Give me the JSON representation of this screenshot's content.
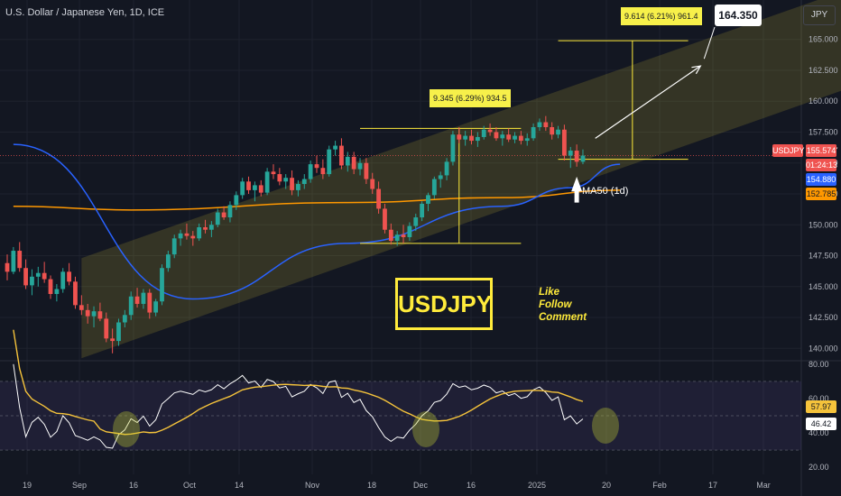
{
  "header": {
    "title": "U.S. Dollar / Japanese Yen, 1D, ICE"
  },
  "currency_button": "JPY",
  "price_tags": {
    "symbol": "USDJPY",
    "last": "155.574",
    "countdown": "01:24:13",
    "ma50": "154.880",
    "ma200": "152.785",
    "rsi": "46.42",
    "rsi_ma": "57.97"
  },
  "annotations": {
    "brand": "USDJPY",
    "cta": [
      "Like",
      "Follow",
      "Comment"
    ],
    "ma_label": "MA50 (1d)",
    "measure_1": "9.345 (6.29%) 934.5",
    "measure_2": "9.614 (6.21%) 961.4",
    "target": "164.350"
  },
  "colors": {
    "background": "#131722",
    "up": "#26a69a",
    "down": "#ef5350",
    "ma50": "#2962ff",
    "ma200": "#ff9800",
    "channel": "#ffeb3b",
    "rsi": "#ffffff",
    "rsi_ma": "#f5c33b"
  },
  "chart_data": [
    {
      "type": "candlestick",
      "title": "U.S. Dollar / Japanese Yen, 1D, ICE",
      "x_ticks": [
        "19",
        "Sep",
        "16",
        "Oct",
        "14",
        "Nov",
        "18",
        "Dec",
        "16",
        "2025",
        "20",
        "Feb",
        "17",
        "Mar"
      ],
      "y_ticks": [
        140.0,
        142.5,
        145.0,
        147.5,
        150.0,
        152.5,
        155.0,
        157.5,
        160.0,
        162.5,
        165.0
      ],
      "ylim": [
        139.0,
        166.0
      ],
      "ohlc": [
        [
          146.9,
          147.6,
          145.5,
          146.2
        ],
        [
          146.2,
          148.2,
          146.0,
          147.9
        ],
        [
          147.9,
          148.6,
          146.2,
          146.5
        ],
        [
          146.5,
          147.2,
          144.8,
          145.1
        ],
        [
          145.1,
          146.4,
          144.3,
          145.8
        ],
        [
          145.8,
          146.6,
          145.0,
          146.1
        ],
        [
          146.1,
          147.0,
          145.3,
          145.6
        ],
        [
          145.6,
          145.9,
          144.0,
          144.4
        ],
        [
          144.4,
          145.2,
          143.8,
          144.8
        ],
        [
          144.8,
          146.5,
          144.5,
          146.2
        ],
        [
          146.2,
          146.9,
          145.1,
          145.4
        ],
        [
          145.4,
          145.8,
          143.2,
          143.5
        ],
        [
          143.5,
          144.3,
          142.7,
          143.1
        ],
        [
          143.1,
          143.6,
          142.0,
          142.6
        ],
        [
          142.6,
          143.4,
          141.7,
          143.0
        ],
        [
          143.0,
          143.7,
          142.2,
          142.4
        ],
        [
          142.4,
          142.9,
          140.5,
          140.8
        ],
        [
          140.8,
          141.6,
          139.6,
          140.6
        ],
        [
          140.6,
          142.4,
          140.2,
          142.1
        ],
        [
          142.1,
          143.1,
          141.7,
          142.7
        ],
        [
          142.7,
          144.6,
          142.3,
          144.2
        ],
        [
          144.2,
          144.9,
          143.3,
          143.6
        ],
        [
          143.6,
          144.8,
          143.2,
          144.5
        ],
        [
          144.5,
          144.8,
          142.4,
          142.9
        ],
        [
          142.9,
          144.0,
          142.6,
          143.8
        ],
        [
          143.8,
          146.8,
          143.5,
          146.5
        ],
        [
          146.5,
          147.9,
          146.2,
          147.6
        ],
        [
          147.6,
          149.2,
          147.3,
          148.9
        ],
        [
          148.9,
          149.6,
          148.3,
          149.3
        ],
        [
          149.3,
          150.1,
          148.8,
          149.1
        ],
        [
          149.1,
          149.5,
          148.3,
          148.9
        ],
        [
          148.9,
          150.1,
          148.7,
          149.8
        ],
        [
          149.8,
          150.4,
          149.3,
          149.6
        ],
        [
          149.6,
          150.3,
          149.0,
          150.0
        ],
        [
          150.0,
          151.3,
          149.8,
          151.0
        ],
        [
          151.0,
          151.5,
          150.4,
          150.6
        ],
        [
          150.6,
          151.9,
          150.2,
          151.6
        ],
        [
          151.6,
          152.7,
          151.2,
          152.4
        ],
        [
          152.4,
          153.8,
          152.1,
          153.5
        ],
        [
          153.5,
          153.9,
          152.5,
          152.8
        ],
        [
          152.8,
          153.5,
          151.9,
          153.2
        ],
        [
          153.2,
          153.6,
          152.3,
          152.6
        ],
        [
          152.6,
          154.6,
          152.4,
          154.3
        ],
        [
          154.3,
          154.9,
          153.7,
          154.1
        ],
        [
          154.1,
          154.6,
          153.2,
          153.5
        ],
        [
          153.5,
          154.1,
          152.9,
          153.8
        ],
        [
          153.8,
          154.4,
          152.4,
          152.8
        ],
        [
          152.8,
          153.6,
          152.3,
          153.3
        ],
        [
          153.3,
          154.1,
          152.9,
          153.7
        ],
        [
          153.7,
          155.2,
          153.4,
          154.9
        ],
        [
          154.9,
          155.6,
          154.2,
          154.6
        ],
        [
          154.6,
          155.3,
          153.7,
          154.1
        ],
        [
          154.1,
          156.4,
          153.9,
          156.1
        ],
        [
          156.1,
          156.8,
          155.6,
          156.4
        ],
        [
          156.4,
          157.0,
          154.5,
          154.8
        ],
        [
          154.8,
          155.9,
          154.3,
          155.5
        ],
        [
          155.5,
          155.9,
          154.1,
          154.5
        ],
        [
          154.5,
          155.4,
          154.0,
          155.0
        ],
        [
          155.0,
          155.4,
          153.3,
          153.7
        ],
        [
          153.7,
          154.2,
          152.5,
          152.9
        ],
        [
          152.9,
          153.5,
          150.9,
          151.3
        ],
        [
          151.3,
          151.7,
          149.3,
          149.6
        ],
        [
          149.6,
          150.1,
          148.4,
          148.7
        ],
        [
          148.7,
          149.5,
          148.3,
          149.2
        ],
        [
          149.2,
          150.0,
          148.5,
          149.0
        ],
        [
          149.0,
          150.2,
          148.7,
          149.9
        ],
        [
          149.9,
          150.9,
          149.5,
          150.6
        ],
        [
          150.6,
          151.9,
          150.3,
          151.7
        ],
        [
          151.7,
          152.6,
          151.1,
          152.4
        ],
        [
          152.4,
          153.9,
          152.1,
          153.7
        ],
        [
          153.7,
          154.3,
          153.0,
          154.0
        ],
        [
          154.0,
          155.4,
          153.6,
          155.1
        ],
        [
          155.1,
          157.6,
          154.8,
          157.3
        ],
        [
          157.3,
          157.9,
          156.6,
          156.9
        ],
        [
          156.9,
          157.6,
          156.4,
          157.2
        ],
        [
          157.2,
          157.7,
          156.5,
          156.8
        ],
        [
          156.8,
          157.5,
          156.3,
          157.1
        ],
        [
          157.1,
          158.0,
          156.9,
          157.7
        ],
        [
          157.7,
          158.2,
          157.2,
          157.5
        ],
        [
          157.5,
          157.9,
          156.8,
          157.0
        ],
        [
          157.0,
          157.6,
          156.4,
          157.3
        ],
        [
          157.3,
          157.8,
          156.7,
          156.9
        ],
        [
          156.9,
          157.5,
          156.6,
          157.2
        ],
        [
          157.2,
          157.6,
          156.5,
          156.8
        ],
        [
          156.8,
          157.4,
          156.4,
          157.0
        ],
        [
          157.0,
          158.2,
          156.8,
          157.9
        ],
        [
          157.9,
          158.6,
          157.6,
          158.3
        ],
        [
          158.3,
          158.8,
          157.6,
          157.9
        ],
        [
          157.9,
          158.3,
          156.9,
          157.3
        ],
        [
          157.3,
          158.0,
          157.0,
          157.7
        ],
        [
          157.7,
          158.1,
          155.2,
          155.6
        ],
        [
          155.6,
          156.3,
          154.6,
          156.0
        ],
        [
          156.0,
          156.5,
          154.7,
          155.1
        ],
        [
          155.1,
          156.1,
          154.9,
          155.6
        ]
      ],
      "ma50": [
        [
          1,
          156.5
        ],
        [
          30,
          144.0
        ],
        [
          55,
          148.5
        ],
        [
          80,
          151.5
        ],
        [
          91,
          153.0
        ],
        [
          99,
          154.9
        ]
      ],
      "ma200": [
        [
          1,
          151.5
        ],
        [
          20,
          151.2
        ],
        [
          55,
          151.8
        ],
        [
          80,
          152.2
        ],
        [
          99,
          152.8
        ]
      ],
      "channel": [
        [
          12,
          139.2,
          147.3
        ],
        [
          99,
          154.5,
          162.5
        ],
        [
          160,
          165.3,
          173.3
        ]
      ],
      "measures": [
        {
          "label": "9.345 (6.29%) 934.5",
          "from": 148.5,
          "to": 157.8
        },
        {
          "label": "9.614 (6.21%) 961.4",
          "from": 155.3,
          "to": 164.9
        }
      ],
      "target": 164.35
    },
    {
      "type": "line",
      "title": "",
      "ylim": [
        18,
        82
      ],
      "y_ticks": [
        20.0,
        40.0,
        60.0,
        80.0
      ],
      "bands": [
        30,
        70
      ],
      "rsi_end": 46.42,
      "rsi_ma_end": 57.97
    }
  ]
}
